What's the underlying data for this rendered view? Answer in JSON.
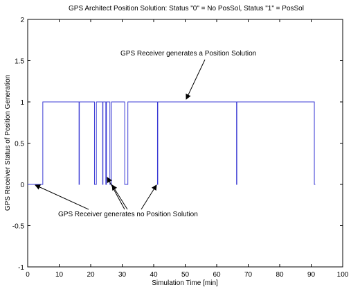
{
  "chart_data": {
    "type": "line",
    "title": "GPS Architect Position Solution: Status \"0\" = No PosSol, Status \"1\" = PosSol",
    "xlabel": "Simulation Time [min]",
    "ylabel": "GPS Receiver Status of Position Generation",
    "xlim": [
      0,
      100
    ],
    "ylim": [
      -1,
      2
    ],
    "xticks": [
      0,
      10,
      20,
      30,
      40,
      50,
      60,
      70,
      80,
      90,
      100
    ],
    "xtick_labels": [
      "0",
      "10",
      "20",
      "30",
      "40",
      "50",
      "60",
      "70",
      "80",
      "90",
      "100"
    ],
    "yticks": [
      -1,
      -0.5,
      0,
      0.5,
      1,
      1.5,
      2
    ],
    "ytick_labels": [
      "-1",
      "-0.5",
      "0",
      "0.5",
      "1",
      "1.5",
      "2"
    ],
    "grid": false,
    "series": [
      {
        "color": "#3b3bd4",
        "x": [
          0,
          4.8,
          4.8,
          16.3,
          16.3,
          16.4,
          16.4,
          21.2,
          21.2,
          21.8,
          21.8,
          22.3,
          22.3,
          23.8,
          23.8,
          23.9,
          23.9,
          24.8,
          24.8,
          25.0,
          25.0,
          26.1,
          26.1,
          26.6,
          26.6,
          26.7,
          26.7,
          30.8,
          30.8,
          31.0,
          31.0,
          31.8,
          31.8,
          41.2,
          41.2,
          41.3,
          41.3,
          66.3,
          66.3,
          66.4,
          66.4,
          91.0,
          91.0,
          91.3
        ],
        "y": [
          0,
          0,
          1,
          1,
          0,
          0,
          1,
          1,
          0,
          0,
          1,
          1,
          1,
          1,
          0,
          0,
          1,
          1,
          0,
          0,
          1,
          1,
          0,
          0,
          1,
          1,
          1,
          1,
          0,
          0,
          0,
          0,
          1,
          1,
          0,
          0,
          1,
          1,
          0,
          0,
          1,
          1,
          0,
          0
        ]
      }
    ],
    "annotations": [
      {
        "text": "GPS Receiver generates a Position Solution",
        "arrow_to": [
          50,
          1
        ]
      },
      {
        "text": "GPS Receiver generates no Position Solution",
        "arrow_to": [
          [
            2,
            0
          ],
          [
            24,
            0.05
          ],
          [
            27,
            0
          ],
          [
            40.8,
            0
          ]
        ]
      }
    ]
  }
}
